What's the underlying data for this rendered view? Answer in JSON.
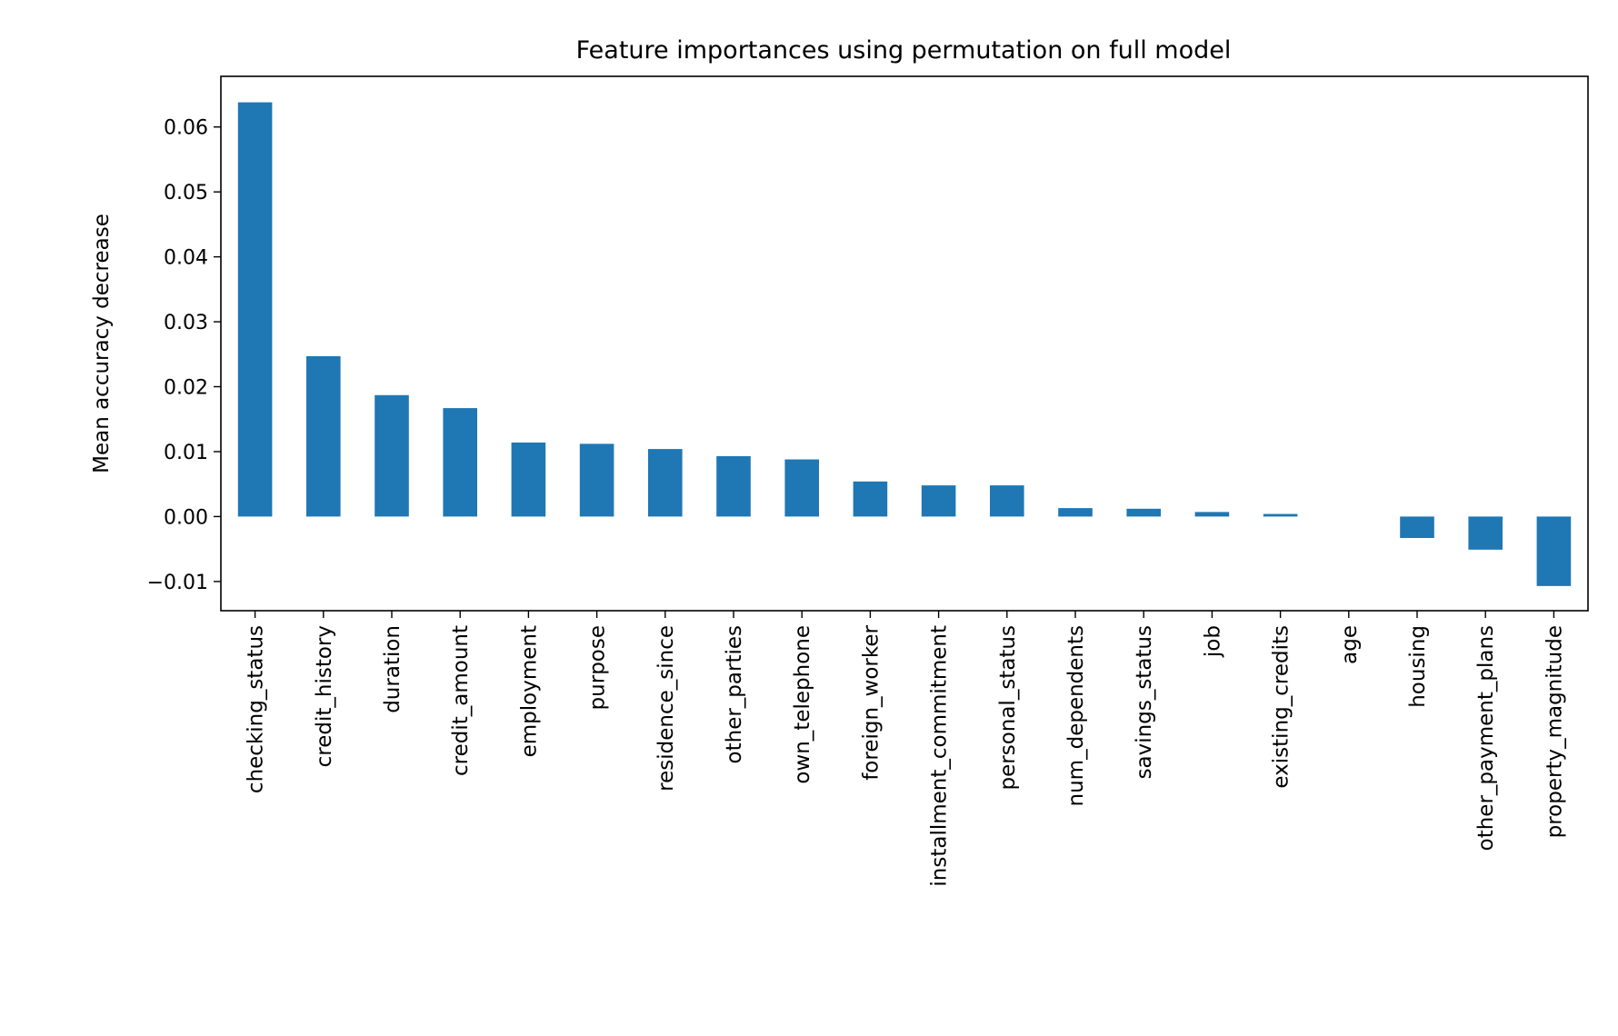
{
  "chart_data": {
    "type": "bar",
    "title": "Feature importances using permutation on full model",
    "xlabel": "",
    "ylabel": "Mean accuracy decrease",
    "categories": [
      "checking_status",
      "credit_history",
      "duration",
      "credit_amount",
      "employment",
      "purpose",
      "residence_since",
      "other_parties",
      "own_telephone",
      "foreign_worker",
      "installment_commitment",
      "personal_status",
      "num_dependents",
      "savings_status",
      "job",
      "existing_credits",
      "age",
      "housing",
      "other_payment_plans",
      "property_magnitude"
    ],
    "values": [
      0.0638,
      0.0247,
      0.0187,
      0.0167,
      0.0114,
      0.0112,
      0.0104,
      0.0093,
      0.0088,
      0.0054,
      0.0048,
      0.0048,
      0.0013,
      0.0012,
      0.0007,
      0.0004,
      0.0,
      -0.0033,
      -0.0051,
      -0.0107
    ],
    "ylim": [
      -0.0145,
      0.0678
    ],
    "yticks": [
      -0.01,
      0.0,
      0.01,
      0.02,
      0.03,
      0.04,
      0.05,
      0.06
    ],
    "ytick_labels": [
      "−0.01",
      "0.00",
      "0.01",
      "0.02",
      "0.03",
      "0.04",
      "0.05",
      "0.06"
    ],
    "grid": false,
    "legend": "none",
    "colors": {
      "bar": "#1f77b4",
      "axes": "#000000",
      "background": "#ffffff"
    }
  }
}
